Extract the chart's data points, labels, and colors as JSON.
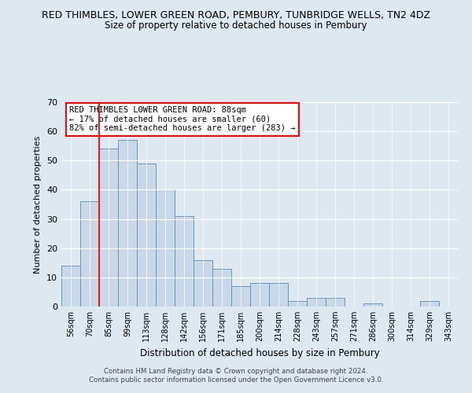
{
  "title": "RED THIMBLES, LOWER GREEN ROAD, PEMBURY, TUNBRIDGE WELLS, TN2 4DZ",
  "subtitle": "Size of property relative to detached houses in Pembury",
  "xlabel": "Distribution of detached houses by size in Pembury",
  "ylabel": "Number of detached properties",
  "bin_labels": [
    "56sqm",
    "70sqm",
    "85sqm",
    "99sqm",
    "113sqm",
    "128sqm",
    "142sqm",
    "156sqm",
    "171sqm",
    "185sqm",
    "200sqm",
    "214sqm",
    "228sqm",
    "243sqm",
    "257sqm",
    "271sqm",
    "286sqm",
    "300sqm",
    "314sqm",
    "329sqm",
    "343sqm"
  ],
  "bar_heights": [
    14,
    36,
    54,
    57,
    49,
    40,
    31,
    16,
    13,
    7,
    8,
    8,
    2,
    3,
    3,
    0,
    1,
    0,
    0,
    2,
    0
  ],
  "bar_color": "#c8d8e8",
  "bar_edge_color": "#6699bb",
  "ylim": [
    0,
    70
  ],
  "yticks": [
    0,
    10,
    20,
    30,
    40,
    50,
    60,
    70
  ],
  "red_line_x": 2,
  "annotation_line1": "RED THIMBLES LOWER GREEN ROAD: 88sqm",
  "annotation_line2": "← 17% of detached houses are smaller (60)",
  "annotation_line3": "82% of semi-detached houses are larger (283) →",
  "footer_line1": "Contains HM Land Registry data © Crown copyright and database right 2024.",
  "footer_line2": "Contains public sector information licensed under the Open Government Licence v3.0.",
  "bg_color": "#dde8f0",
  "plot_bg_color": "#dde8f0"
}
